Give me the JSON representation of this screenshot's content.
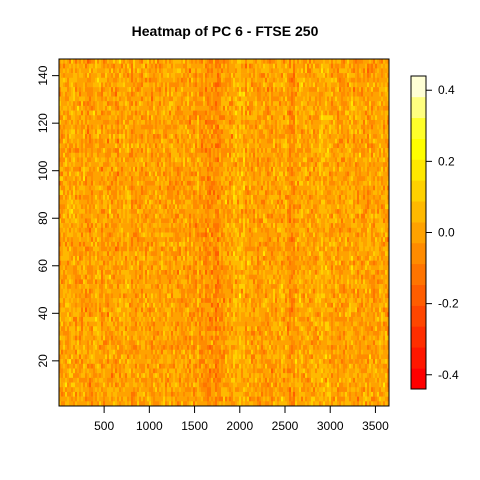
{
  "chart_data": {
    "type": "heatmap",
    "title": "Heatmap of PC 6  - FTSE 250",
    "xlabel": "",
    "ylabel": "",
    "xlim": [
      1,
      3650
    ],
    "ylim": [
      1,
      147
    ],
    "x_ticks": [
      {
        "value": 500,
        "label": "500"
      },
      {
        "value": 1000,
        "label": "1000"
      },
      {
        "value": 1500,
        "label": "1500"
      },
      {
        "value": 2000,
        "label": "2000"
      },
      {
        "value": 2500,
        "label": "2500"
      },
      {
        "value": 3000,
        "label": "3000"
      },
      {
        "value": 3500,
        "label": "3500"
      }
    ],
    "y_ticks": [
      {
        "value": 20,
        "label": "20"
      },
      {
        "value": 40,
        "label": "40"
      },
      {
        "value": 60,
        "label": "60"
      },
      {
        "value": 80,
        "label": "80"
      },
      {
        "value": 100,
        "label": "100"
      },
      {
        "value": 120,
        "label": "120"
      },
      {
        "value": 140,
        "label": "140"
      }
    ],
    "value_range": [
      -0.44,
      0.44
    ],
    "palette": [
      "#FF0000",
      "#FF1700",
      "#FF2E00",
      "#FF4600",
      "#FF5D00",
      "#FF7400",
      "#FF8B00",
      "#FFA200",
      "#FFB900",
      "#FFD100",
      "#FFE800",
      "#FFFF00",
      "#FFFF2A",
      "#FFFF80",
      "#FFFFD5"
    ],
    "colorbar": {
      "ticks": [
        {
          "value": -0.4,
          "label": "-0.4"
        },
        {
          "value": -0.2,
          "label": "-0.2"
        },
        {
          "value": 0.0,
          "label": "0.0"
        },
        {
          "value": 0.2,
          "label": "0.2"
        },
        {
          "value": 0.4,
          "label": "0.4"
        }
      ]
    },
    "grid": false,
    "legend": "right"
  }
}
